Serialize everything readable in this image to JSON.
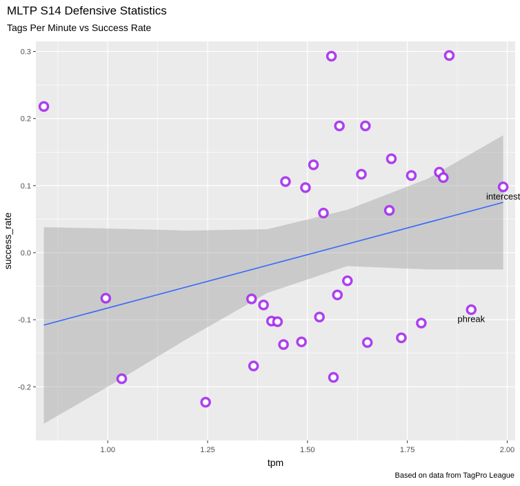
{
  "chart_data": {
    "type": "scatter",
    "title": "MLTP S14 Defensive Statistics",
    "subtitle": "Tags Per Minute vs Success Rate",
    "xlabel": "tpm",
    "ylabel": "success_rate",
    "caption": "Based on data from TagPro League",
    "xlim": [
      0.82,
      2.02
    ],
    "ylim": [
      -0.28,
      0.315
    ],
    "x_ticks": [
      1.0,
      1.25,
      1.5,
      1.75,
      2.0
    ],
    "x_tick_labels": [
      "1.00",
      "1.25",
      "1.50",
      "1.75",
      "2.00"
    ],
    "y_ticks": [
      -0.2,
      -0.1,
      0.0,
      0.1,
      0.2,
      0.3
    ],
    "y_tick_labels": [
      "-0.2",
      "-0.1",
      "0.0",
      "0.1",
      "0.2",
      "0.3"
    ],
    "grid": true,
    "point_color": "#a020f0",
    "line_color": "#3366ff",
    "ribbon_color": "#999999",
    "panel_color": "#ebebeb",
    "points": [
      {
        "x": 0.84,
        "y": 0.218
      },
      {
        "x": 0.995,
        "y": -0.068
      },
      {
        "x": 1.035,
        "y": -0.188
      },
      {
        "x": 1.245,
        "y": -0.223
      },
      {
        "x": 1.36,
        "y": -0.069
      },
      {
        "x": 1.365,
        "y": -0.169
      },
      {
        "x": 1.39,
        "y": -0.078
      },
      {
        "x": 1.41,
        "y": -0.102
      },
      {
        "x": 1.425,
        "y": -0.103
      },
      {
        "x": 1.44,
        "y": -0.137
      },
      {
        "x": 1.445,
        "y": 0.106
      },
      {
        "x": 1.485,
        "y": -0.133
      },
      {
        "x": 1.495,
        "y": 0.097
      },
      {
        "x": 1.515,
        "y": 0.131
      },
      {
        "x": 1.53,
        "y": -0.096
      },
      {
        "x": 1.54,
        "y": 0.059
      },
      {
        "x": 1.56,
        "y": 0.293
      },
      {
        "x": 1.565,
        "y": -0.186
      },
      {
        "x": 1.575,
        "y": -0.063
      },
      {
        "x": 1.58,
        "y": 0.189
      },
      {
        "x": 1.6,
        "y": -0.042
      },
      {
        "x": 1.635,
        "y": 0.117
      },
      {
        "x": 1.645,
        "y": 0.189
      },
      {
        "x": 1.65,
        "y": -0.134
      },
      {
        "x": 1.705,
        "y": 0.063
      },
      {
        "x": 1.71,
        "y": 0.14
      },
      {
        "x": 1.735,
        "y": -0.127
      },
      {
        "x": 1.76,
        "y": 0.115
      },
      {
        "x": 1.785,
        "y": -0.105
      },
      {
        "x": 1.83,
        "y": 0.12
      },
      {
        "x": 1.84,
        "y": 0.112
      },
      {
        "x": 1.855,
        "y": 0.294
      },
      {
        "x": 1.91,
        "y": -0.085
      },
      {
        "x": 1.99,
        "y": 0.098
      }
    ],
    "labels": [
      {
        "text": "intercest",
        "x": 1.99,
        "y": 0.098
      },
      {
        "text": "phreak",
        "x": 1.91,
        "y": -0.085
      }
    ],
    "trend": {
      "x": [
        0.84,
        1.99
      ],
      "y": [
        -0.108,
        0.075
      ]
    },
    "ribbon": {
      "x": [
        0.84,
        1.0,
        1.2,
        1.4,
        1.6,
        1.8,
        1.99
      ],
      "upper": [
        0.038,
        0.036,
        0.033,
        0.035,
        0.064,
        0.11,
        0.175
      ],
      "lower": [
        -0.255,
        -0.2,
        -0.128,
        -0.06,
        -0.02,
        -0.025,
        -0.025
      ]
    }
  }
}
